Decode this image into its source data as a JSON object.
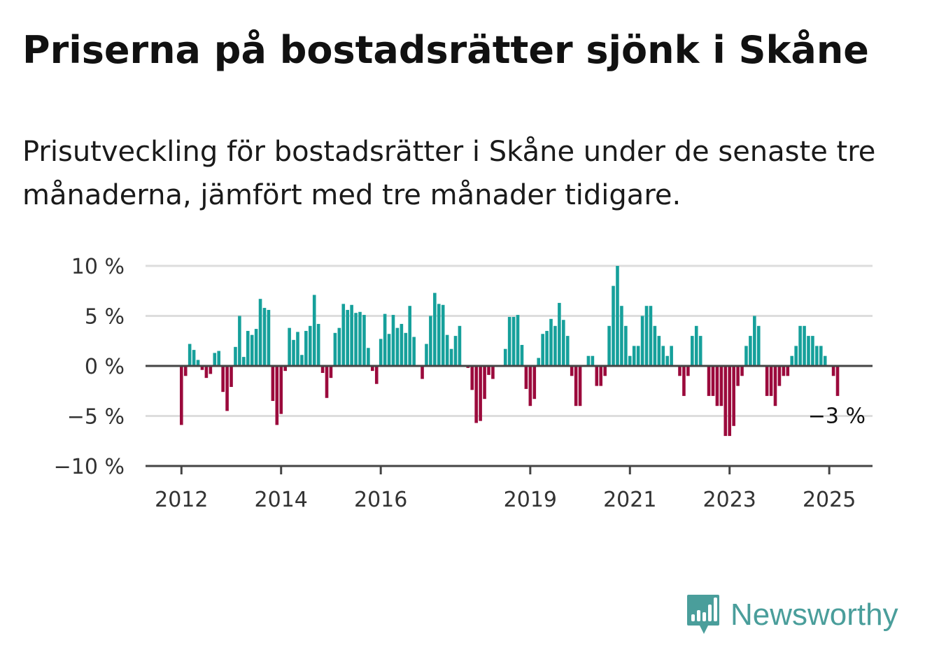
{
  "title": "Priserna på bostadsrätter sjönk i Skåne",
  "subtitle": "Prisutveckling för bostadsrätter i Skåne under de senaste tre månaderna, jämfört med tre månader tidigare.",
  "colors": {
    "positive": "#16a09b",
    "negative": "#9b0a3c",
    "grid": "#dddddd",
    "axis": "#444444",
    "text": "#333333",
    "brand": "#4a9e9b"
  },
  "logo": {
    "text": "Newsworthy",
    "icon": "newsworthy-bar-chart-icon"
  },
  "chart_data": {
    "type": "bar",
    "title": "",
    "xlabel": "",
    "ylabel": "",
    "ylim": [
      -10,
      10
    ],
    "grid": true,
    "y_ticks": [
      {
        "value": 10,
        "label": "10 %"
      },
      {
        "value": 5,
        "label": "5 %"
      },
      {
        "value": 0,
        "label": "0 %"
      },
      {
        "value": -5,
        "label": "−5 %"
      },
      {
        "value": -10,
        "label": "−10 %"
      }
    ],
    "x_ticks": [
      {
        "month": "2012-01",
        "label": "2012"
      },
      {
        "month": "2014-01",
        "label": "2014"
      },
      {
        "month": "2016-01",
        "label": "2016"
      },
      {
        "month": "2019-01",
        "label": "2019"
      },
      {
        "month": "2021-01",
        "label": "2021"
      },
      {
        "month": "2023-01",
        "label": "2023"
      },
      {
        "month": "2025-01",
        "label": "2025"
      }
    ],
    "last_value_label": "−3 %",
    "series": [
      {
        "start_month": "2012-01",
        "values": [
          -5.9,
          -1,
          2.2,
          1.6,
          0.6,
          -0.4,
          -1.2,
          -0.8,
          1.3,
          1.5,
          -2.6,
          -4.5,
          -2.1,
          1.9,
          5,
          0.9,
          3.5,
          3.1,
          3.7,
          6.7,
          5.8,
          5.6,
          -3.5,
          -5.9,
          -4.8,
          -0.5,
          3.8,
          2.6,
          3.4,
          1.1,
          3.5,
          4,
          7.1,
          4.2,
          -0.7,
          -3.2,
          -1.2,
          3.3,
          3.8,
          6.2,
          5.6,
          6.1,
          5.3,
          5.4,
          5.1,
          1.8,
          -0.5,
          -1.8
        ]
      },
      {
        "start_month": "2016-01",
        "values": [
          2.7,
          5.2,
          3.2,
          5.1,
          3.8,
          4.2,
          3.3,
          6,
          2.9,
          0,
          -1.3,
          2.2,
          5,
          7.3,
          6.2,
          6.1,
          3.1,
          1.7,
          3,
          4
        ]
      },
      {
        "start_month": "2017-10",
        "values": [
          -0.2,
          -2.4,
          -5.7,
          -5.5,
          -3.3,
          -0.9,
          -1.3
        ]
      },
      {
        "start_month": "2018-07",
        "values": [
          1.7,
          4.9,
          4.9,
          5.1,
          2.1,
          -2.3,
          -4,
          -3.3,
          0.8,
          3.2,
          3.5,
          4.7,
          4,
          6.3,
          4.6,
          3,
          -1,
          -4,
          -4,
          0,
          1,
          1,
          -2,
          -2,
          -1,
          4,
          8,
          10,
          6,
          4,
          1,
          2,
          2,
          5,
          6,
          6,
          4,
          3,
          2,
          1,
          2,
          0,
          -1,
          -3,
          -1,
          3,
          4,
          3,
          0,
          -3,
          -3,
          -4,
          -4,
          -7,
          -7,
          -6,
          -2,
          -1,
          2,
          3,
          5,
          4,
          0,
          -3,
          -3,
          -4,
          -2,
          -1,
          -1,
          1,
          2,
          4,
          4,
          3,
          3,
          2,
          2,
          1,
          0,
          -1,
          -3
        ]
      }
    ]
  }
}
